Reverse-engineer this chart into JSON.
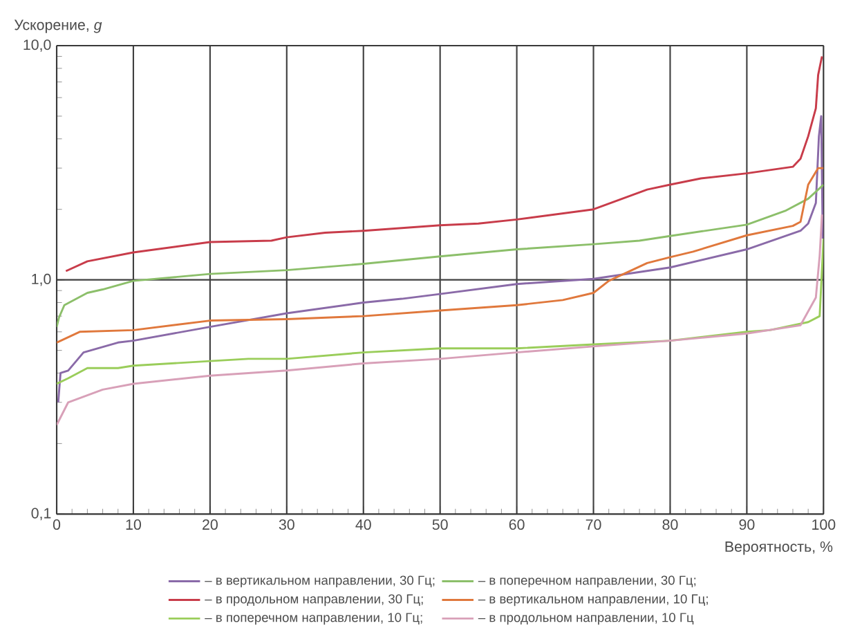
{
  "chart_data": {
    "type": "line",
    "xlabel": "Вероятность, %",
    "ylabel": "Ускорение, *g*",
    "xlim": [
      0,
      100
    ],
    "xticks": [
      0,
      10,
      20,
      30,
      40,
      50,
      60,
      70,
      80,
      90,
      100
    ],
    "ylim": [
      0.1,
      10
    ],
    "yticks": [
      {
        "value": 0.1,
        "label": "0,1"
      },
      {
        "value": 1,
        "label": "1,0"
      },
      {
        "value": 10,
        "label": "10,0"
      }
    ],
    "log": "y",
    "grid": true,
    "legend": "bottom",
    "marker": "none",
    "line_style": "solid",
    "series": [
      {
        "name": "– в вертикальном направлении, 30 Гц;",
        "color": "#8a6aa8",
        "x": [
          0.2,
          0.5,
          1.5,
          3.5,
          8,
          10,
          20,
          30,
          40,
          45,
          50,
          60,
          70,
          80,
          90,
          97,
          98,
          99,
          99.4,
          99.7,
          99.9
        ],
        "values": [
          0.3,
          0.4,
          0.41,
          0.49,
          0.54,
          0.55,
          0.63,
          0.72,
          0.8,
          0.83,
          0.87,
          0.96,
          1.01,
          1.13,
          1.35,
          1.62,
          1.74,
          2.13,
          4.1,
          5.0,
          1.5
        ]
      },
      {
        "name": "– в поперечном направлении, 30 Гц;",
        "color": "#8cbf6a",
        "x": [
          0,
          0.3,
          1,
          4,
          6,
          10,
          20,
          30,
          40,
          50,
          60,
          70,
          76,
          80,
          90,
          95,
          98,
          100
        ],
        "values": [
          0.63,
          0.69,
          0.78,
          0.88,
          0.91,
          0.99,
          1.06,
          1.1,
          1.17,
          1.26,
          1.35,
          1.42,
          1.47,
          1.54,
          1.72,
          1.97,
          2.22,
          2.55
        ]
      },
      {
        "name": "– в продольном направлении, 30 Гц;",
        "color": "#c83c4a",
        "x": [
          1.2,
          4,
          10,
          20,
          28,
          30,
          35,
          40,
          50,
          55,
          60,
          70,
          77,
          80,
          84,
          90,
          96,
          97,
          98,
          99,
          99.3,
          99.8
        ],
        "values": [
          1.09,
          1.2,
          1.31,
          1.45,
          1.47,
          1.52,
          1.59,
          1.62,
          1.71,
          1.74,
          1.81,
          2.0,
          2.43,
          2.55,
          2.71,
          2.85,
          3.04,
          3.29,
          4.1,
          5.4,
          7.5,
          9.0
        ]
      },
      {
        "name": "– в вертикальном направлении, 10 Гц;",
        "color": "#e0783c",
        "x": [
          0,
          3,
          10,
          20,
          30,
          40,
          50,
          60,
          66,
          70,
          72,
          77,
          80,
          83,
          90,
          96,
          97,
          98,
          99.3,
          100
        ],
        "values": [
          0.54,
          0.6,
          0.61,
          0.67,
          0.68,
          0.7,
          0.74,
          0.78,
          0.82,
          0.88,
          0.99,
          1.18,
          1.25,
          1.32,
          1.55,
          1.7,
          1.77,
          2.55,
          3.0,
          3.0
        ]
      },
      {
        "name": "– в поперечном направлении, 10 Гц;",
        "color": "#9acd5a",
        "x": [
          0,
          1.5,
          4,
          8,
          10,
          20,
          25,
          30,
          40,
          50,
          60,
          70,
          80,
          90,
          93,
          98,
          99.5,
          100
        ],
        "values": [
          0.36,
          0.38,
          0.42,
          0.42,
          0.43,
          0.45,
          0.46,
          0.46,
          0.49,
          0.51,
          0.51,
          0.53,
          0.55,
          0.6,
          0.61,
          0.66,
          0.7,
          1.5
        ]
      },
      {
        "name": "– в продольном направлении, 10 Гц",
        "color": "#d8a0b8",
        "x": [
          0,
          1.5,
          6,
          10,
          20,
          25,
          30,
          40,
          50,
          60,
          70,
          80,
          90,
          97,
          99,
          99.5,
          99.8
        ],
        "values": [
          0.24,
          0.3,
          0.34,
          0.36,
          0.39,
          0.4,
          0.41,
          0.44,
          0.46,
          0.49,
          0.52,
          0.55,
          0.59,
          0.64,
          0.84,
          1.27,
          1.9
        ]
      }
    ]
  }
}
